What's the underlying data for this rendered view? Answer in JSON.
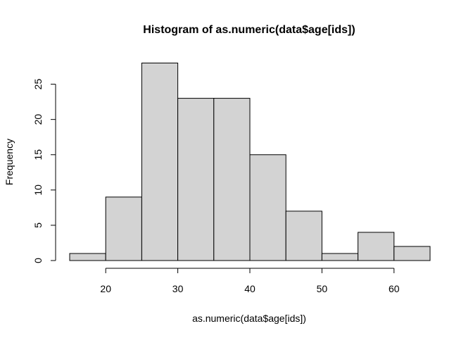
{
  "chart_data": {
    "type": "bar",
    "title": "Histogram of as.numeric(data$age[ids])",
    "xlabel": "as.numeric(data$age[ids])",
    "ylabel": "Frequency",
    "bins": [
      {
        "from": 15,
        "to": 20,
        "count": 1
      },
      {
        "from": 20,
        "to": 25,
        "count": 9
      },
      {
        "from": 25,
        "to": 30,
        "count": 28
      },
      {
        "from": 30,
        "to": 35,
        "count": 23
      },
      {
        "from": 35,
        "to": 40,
        "count": 23
      },
      {
        "from": 40,
        "to": 45,
        "count": 15
      },
      {
        "from": 45,
        "to": 50,
        "count": 7
      },
      {
        "from": 50,
        "to": 55,
        "count": 1
      },
      {
        "from": 55,
        "to": 60,
        "count": 4
      },
      {
        "from": 60,
        "to": 65,
        "count": 2
      }
    ],
    "x_ticks": [
      "20",
      "30",
      "40",
      "50",
      "60"
    ],
    "y_ticks": [
      "0",
      "5",
      "10",
      "15",
      "20",
      "25"
    ],
    "xlim": [
      15,
      65
    ],
    "ylim": [
      0,
      28
    ],
    "grid": false,
    "bar_fill": "#d3d3d3",
    "bar_stroke": "#000000"
  }
}
